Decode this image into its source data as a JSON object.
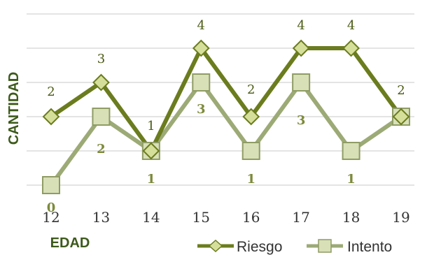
{
  "chart_data": {
    "type": "line",
    "xlabel": "EDAD",
    "ylabel": "CANTIDAD",
    "categories": [
      "12",
      "13",
      "14",
      "15",
      "16",
      "17",
      "18",
      "19"
    ],
    "ylim": [
      0,
      4
    ],
    "grid": true,
    "legend_position": "bottom-right",
    "series": [
      {
        "name": "Riesgo",
        "values": [
          2,
          3,
          1,
          4,
          2,
          4,
          4,
          2
        ],
        "labels": [
          "2",
          "3",
          "1",
          "4",
          "2",
          "4",
          "4",
          "2"
        ],
        "color": "#6b7c1e",
        "marker": "diamond"
      },
      {
        "name": "Intento",
        "values": [
          0,
          2,
          1,
          3,
          1,
          3,
          1,
          2
        ],
        "labels": [
          "0",
          "2",
          "1",
          "3",
          "1",
          "3",
          "1",
          ""
        ],
        "color": "#9caa76",
        "marker": "square"
      }
    ]
  }
}
